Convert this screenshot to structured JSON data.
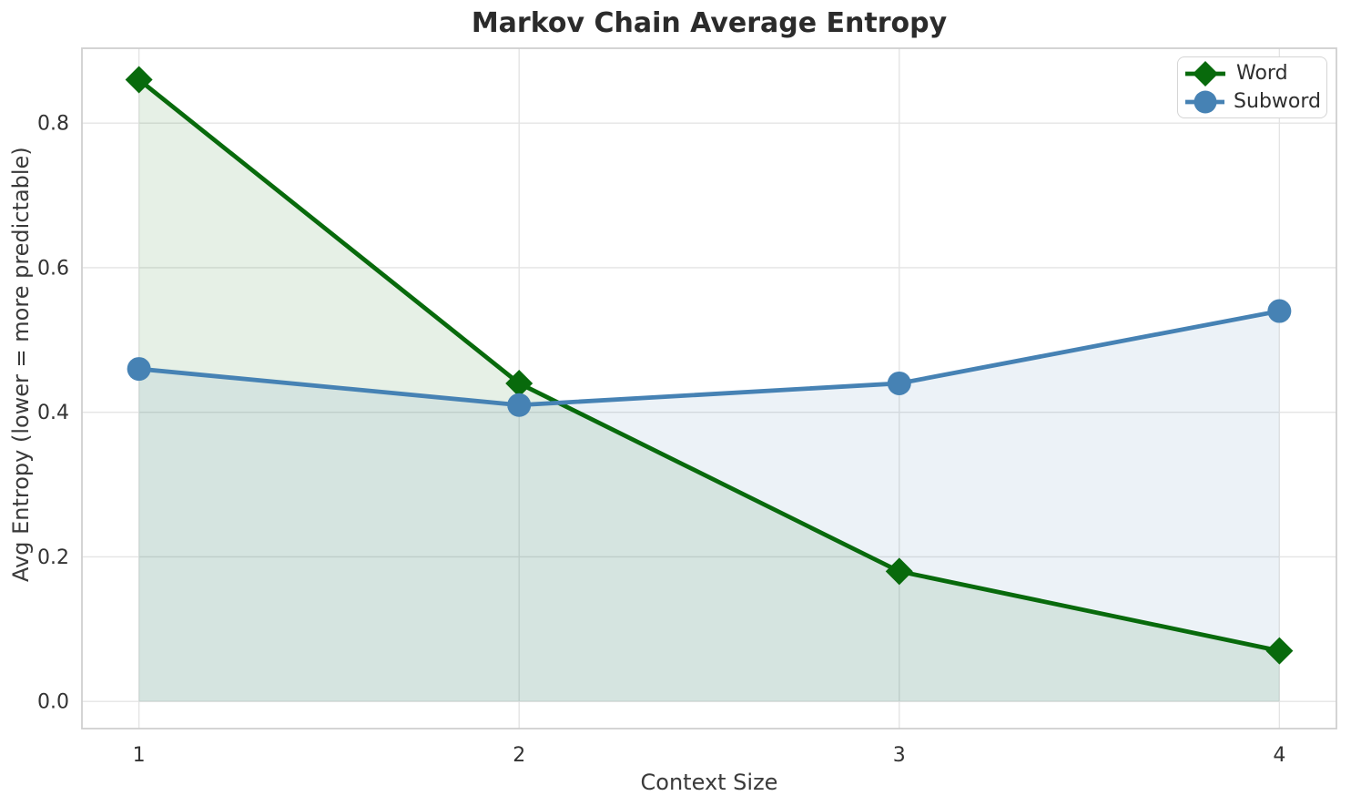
{
  "chart_data": {
    "type": "line",
    "title": "Markov Chain Average Entropy",
    "xlabel": "Context Size",
    "ylabel": "Avg Entropy (lower = more predictable)",
    "x": [
      1,
      2,
      3,
      4
    ],
    "series": [
      {
        "name": "Word",
        "color": "#086a0c",
        "marker": "diamond",
        "values": [
          0.86,
          0.44,
          0.18,
          0.07
        ]
      },
      {
        "name": "Subword",
        "color": "#4682B4",
        "marker": "circle",
        "values": [
          0.46,
          0.41,
          0.44,
          0.54
        ]
      }
    ],
    "fill_to_zero": true,
    "fill_opacity": 0.1,
    "xlim": [
      0.85,
      4.15
    ],
    "ylim": [
      -0.0375,
      0.9035
    ],
    "xtick_values": [
      1,
      2,
      3,
      4
    ],
    "xtick_labels": [
      "1",
      "2",
      "3",
      "4"
    ],
    "ytick_values": [
      0.0,
      0.2,
      0.4,
      0.6,
      0.8
    ],
    "ytick_labels": [
      "0.0",
      "0.2",
      "0.4",
      "0.6",
      "0.8"
    ],
    "grid": true,
    "legend_position": "upper right",
    "legend": [
      "Word",
      "Subword"
    ]
  },
  "colors": {
    "background": "#ffffff",
    "grid": "#e4e4e4",
    "spine": "#cfcfcf",
    "title_text": "#2b2b2b",
    "axis_text": "#333333"
  }
}
